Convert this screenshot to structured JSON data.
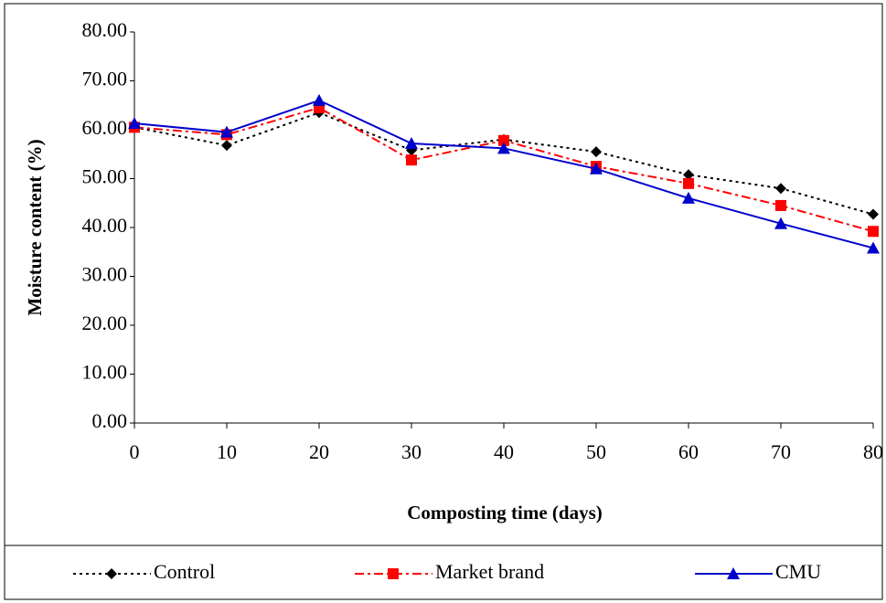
{
  "chart_data": {
    "type": "line",
    "x_label": "Composting time (days)",
    "y_label": "Moisture content (%)",
    "x": [
      0,
      10,
      20,
      30,
      40,
      50,
      60,
      70,
      80
    ],
    "xlim": [
      0,
      80
    ],
    "xticks": [
      0,
      10,
      20,
      30,
      40,
      50,
      60,
      70,
      80
    ],
    "ylim": [
      0,
      80
    ],
    "yticks": [
      {
        "value": 0,
        "label": "0.00"
      },
      {
        "value": 10,
        "label": "10.00"
      },
      {
        "value": 20,
        "label": "20.00"
      },
      {
        "value": 30,
        "label": "30.00"
      },
      {
        "value": 40,
        "label": "40.00"
      },
      {
        "value": 50,
        "label": "50.00"
      },
      {
        "value": 60,
        "label": "60.00"
      },
      {
        "value": 70,
        "label": "70.00"
      },
      {
        "value": 80,
        "label": "80.00"
      }
    ],
    "legend": "bottom",
    "series": [
      {
        "name": "Control",
        "color": "#000000",
        "dash": "3,4",
        "marker": "diamond",
        "values": [
          60.5,
          56.8,
          63.5,
          55.8,
          58.0,
          55.5,
          50.8,
          48.0,
          42.7
        ]
      },
      {
        "name": "Market brand",
        "color": "#ff0000",
        "dash": "10,4,3,4",
        "marker": "square",
        "values": [
          60.5,
          59.0,
          64.5,
          53.8,
          57.8,
          52.5,
          49.0,
          44.5,
          39.2
        ]
      },
      {
        "name": "CMU",
        "color": "#0000cc",
        "dash": "none",
        "marker": "triangle",
        "values": [
          61.3,
          59.5,
          66.0,
          57.2,
          56.2,
          52.0,
          46.0,
          40.8,
          35.8
        ]
      }
    ]
  }
}
